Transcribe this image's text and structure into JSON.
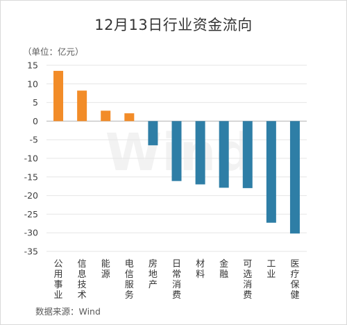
{
  "chart_data": {
    "type": "bar",
    "title": "12月13日行业资金流向",
    "unit": "（单位：亿元）",
    "source": "数据来源：Wind",
    "watermark": "Wind",
    "categories": [
      "公用事业",
      "信息技术",
      "能源",
      "电信服务",
      "房地产",
      "日常消费",
      "材料",
      "金融",
      "可选消费",
      "工业",
      "医疗保健"
    ],
    "values": [
      13.5,
      8.2,
      2.8,
      2.1,
      -6.5,
      -16.1,
      -17.0,
      -17.9,
      -18.0,
      -27.3,
      -30.2
    ],
    "ylim": [
      -35,
      15
    ],
    "yticks": [
      15,
      10,
      5,
      0,
      -5,
      -10,
      -15,
      -20,
      -25,
      -30,
      -35
    ],
    "grid": true,
    "colors": {
      "positive": "#f28c28",
      "negative": "#2e7ea6",
      "grid": "#e6e6e6",
      "axis": "#b3b3b3"
    }
  }
}
